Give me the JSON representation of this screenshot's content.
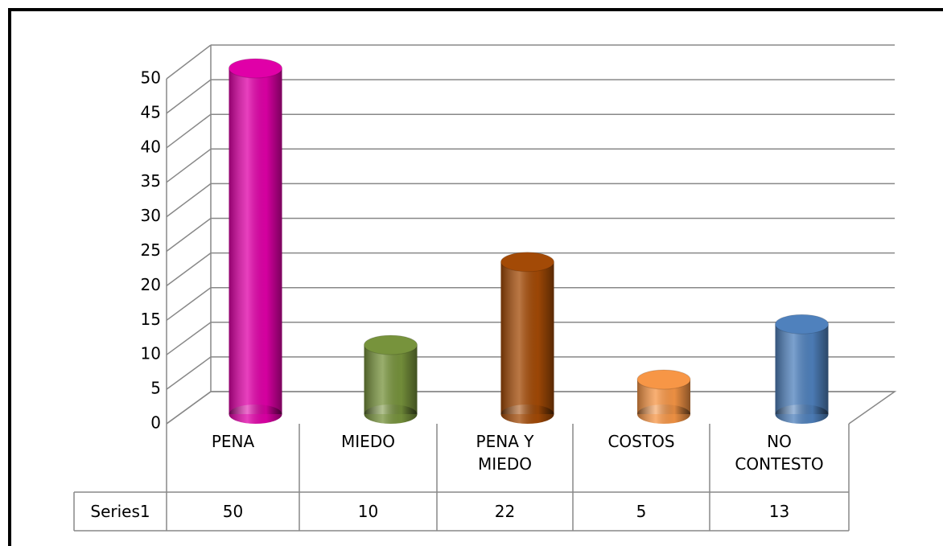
{
  "chart_data": {
    "type": "bar3d",
    "categories": [
      "PENA",
      "MIEDO",
      "PENA Y MIEDO",
      "COSTOS",
      "NO CONTESTO"
    ],
    "series": [
      {
        "name": "Series1",
        "values": [
          50,
          10,
          22,
          5,
          13
        ],
        "colors": [
          "#e000a8",
          "#77933c",
          "#a34a06",
          "#f79646",
          "#4f81bd"
        ]
      }
    ],
    "ylim": [
      0,
      50
    ],
    "yticks": [
      0,
      5,
      10,
      15,
      20,
      25,
      30,
      35,
      40,
      45,
      50
    ],
    "grid": true
  }
}
